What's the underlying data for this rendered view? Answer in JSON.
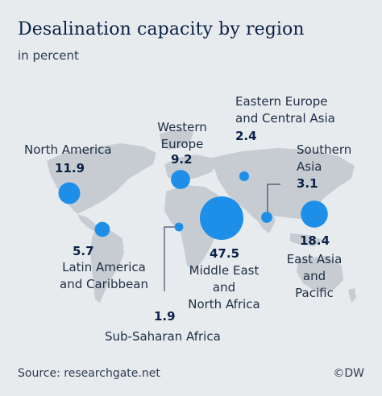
{
  "header": {
    "title": "Desalination capacity by region",
    "subtitle": "in percent"
  },
  "bubble_color": "#1d8fe8",
  "map_color": "#c7ccd3",
  "regions": [
    {
      "name_lines": [
        "North America"
      ],
      "value": 11.9
    },
    {
      "name_lines": [
        "Western",
        "Europe"
      ],
      "value": 9.2
    },
    {
      "name_lines": [
        "Eastern Europe",
        "and Central Asia"
      ],
      "value": 2.4
    },
    {
      "name_lines": [
        "Southern",
        "Asia"
      ],
      "value": 3.1
    },
    {
      "name_lines": [
        "Latin America",
        "and Caribbean"
      ],
      "value": 5.7
    },
    {
      "name_lines": [
        "Middle East",
        "and",
        "North Africa"
      ],
      "value": 47.5
    },
    {
      "name_lines": [
        "East Asia",
        "and",
        "Pacific"
      ],
      "value": 18.4
    },
    {
      "name_lines": [
        "Sub-Saharan Africa"
      ],
      "value": 1.9
    }
  ],
  "footer": {
    "source": "Source: researchgate.net",
    "credit": "©DW"
  }
}
